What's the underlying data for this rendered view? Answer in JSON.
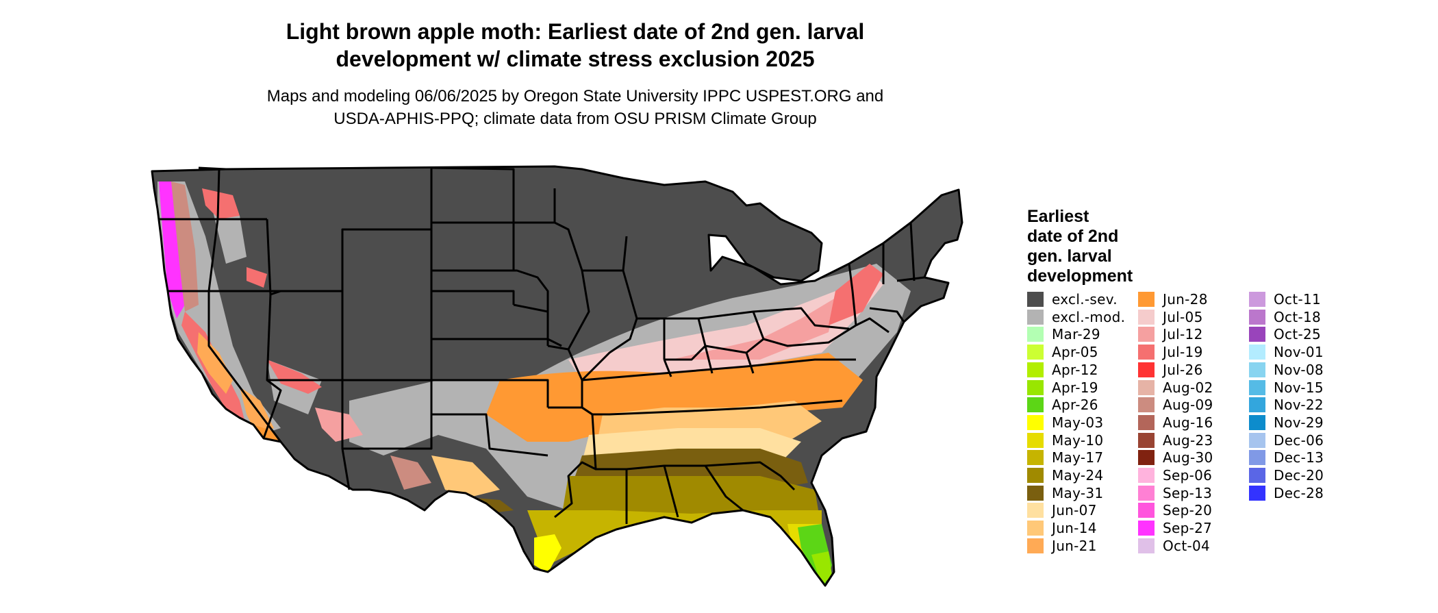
{
  "title": {
    "line1": "Light brown apple moth: Earliest date of 2nd gen. larval",
    "line2": "development w/ climate stress exclusion 2025"
  },
  "subtitle": {
    "line1": "Maps and modeling 06/06/2025 by Oregon State University IPPC USPEST.ORG and",
    "line2": "USDA-APHIS-PPQ; climate data from OSU PRISM Climate Group"
  },
  "legend": {
    "title_lines": [
      "Earliest",
      "date of 2nd",
      "gen. larval",
      "development"
    ],
    "items": [
      {
        "label": "excl.-sev.",
        "color": "#4d4d4d"
      },
      {
        "label": "excl.-mod.",
        "color": "#b3b3b3"
      },
      {
        "label": "Mar-29",
        "color": "#b3ffb3"
      },
      {
        "label": "Apr-05",
        "color": "#ccff33"
      },
      {
        "label": "Apr-12",
        "color": "#b2ee00"
      },
      {
        "label": "Apr-19",
        "color": "#99e600"
      },
      {
        "label": "Apr-26",
        "color": "#5cd616"
      },
      {
        "label": "May-03",
        "color": "#ffff00"
      },
      {
        "label": "May-10",
        "color": "#e6dc00"
      },
      {
        "label": "May-17",
        "color": "#c6b400"
      },
      {
        "label": "May-24",
        "color": "#a08a00"
      },
      {
        "label": "May-31",
        "color": "#7a5f0f"
      },
      {
        "label": "Jun-07",
        "color": "#ffe0a0"
      },
      {
        "label": "Jun-14",
        "color": "#ffc878"
      },
      {
        "label": "Jun-21",
        "color": "#ffaa55"
      },
      {
        "label": "Jun-28",
        "color": "#ff9933"
      },
      {
        "label": "Jul-05",
        "color": "#f5cccc"
      },
      {
        "label": "Jul-12",
        "color": "#f5a0a0"
      },
      {
        "label": "Jul-19",
        "color": "#f57070"
      },
      {
        "label": "Jul-26",
        "color": "#ff3333"
      },
      {
        "label": "Aug-02",
        "color": "#e6b3a6"
      },
      {
        "label": "Aug-09",
        "color": "#cc8c80"
      },
      {
        "label": "Aug-16",
        "color": "#b3665a"
      },
      {
        "label": "Aug-23",
        "color": "#994433"
      },
      {
        "label": "Aug-30",
        "color": "#802210"
      },
      {
        "label": "Sep-06",
        "color": "#ffb3dd"
      },
      {
        "label": "Sep-13",
        "color": "#ff80d4"
      },
      {
        "label": "Sep-20",
        "color": "#ff55dd"
      },
      {
        "label": "Sep-27",
        "color": "#ff33ff"
      },
      {
        "label": "Oct-04",
        "color": "#e0c0e8"
      },
      {
        "label": "Oct-11",
        "color": "#cc99dd"
      },
      {
        "label": "Oct-18",
        "color": "#bb77cc"
      },
      {
        "label": "Oct-25",
        "color": "#9944bb"
      },
      {
        "label": "Nov-01",
        "color": "#b3ecff"
      },
      {
        "label": "Nov-08",
        "color": "#88d4f0"
      },
      {
        "label": "Nov-15",
        "color": "#55bbe6"
      },
      {
        "label": "Nov-22",
        "color": "#33a6dd"
      },
      {
        "label": "Nov-29",
        "color": "#0d8ccc"
      },
      {
        "label": "Dec-06",
        "color": "#a6c4ee"
      },
      {
        "label": "Dec-13",
        "color": "#8099e6"
      },
      {
        "label": "Dec-20",
        "color": "#5a66e6"
      },
      {
        "label": "Dec-28",
        "color": "#3333ff"
      }
    ]
  }
}
